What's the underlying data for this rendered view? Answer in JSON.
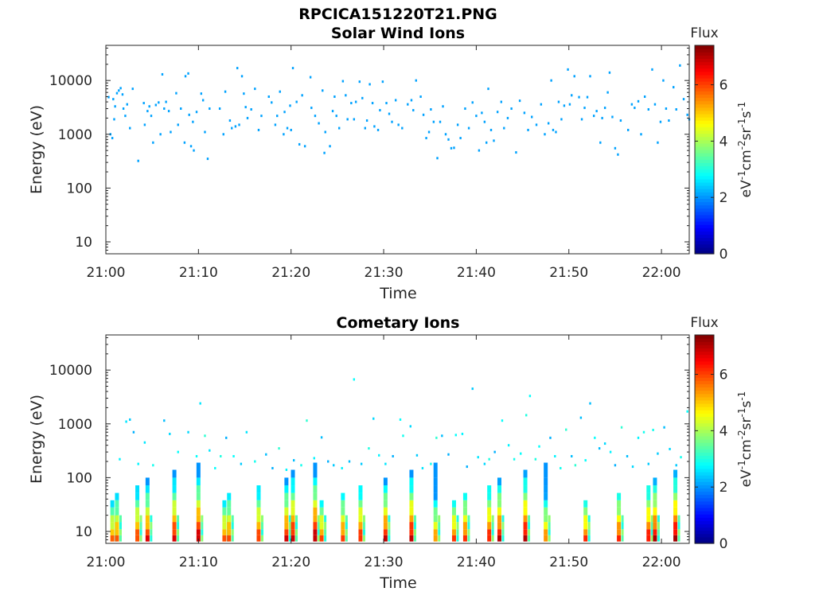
{
  "figure_title": "RPCICA151220T21.PNG",
  "chart_data": [
    {
      "type": "heatmap",
      "title": "Solar Wind Ions",
      "xlabel": "Time",
      "ylabel": "Energy (eV)",
      "yscale": "log",
      "xlim": [
        "21:00",
        "22:03"
      ],
      "ylim": [
        6,
        45000
      ],
      "xticks": [
        "21:00",
        "21:10",
        "21:20",
        "21:30",
        "21:40",
        "21:50",
        "22:00"
      ],
      "yticks": [
        "10",
        "100",
        "1000",
        "10000"
      ],
      "colorbar": {
        "label_top": "Flux",
        "units_label": "eV-1cm-2sr-1s-1",
        "ticks": [
          "0",
          "2",
          "4",
          "6"
        ],
        "range": [
          0,
          7.4
        ]
      },
      "points": [
        [
          0.3,
          4900
        ],
        [
          0.5,
          1000
        ],
        [
          0.7,
          850
        ],
        [
          0.8,
          4500
        ],
        [
          0.9,
          1900
        ],
        [
          1.0,
          3300
        ],
        [
          1.2,
          5800
        ],
        [
          1.4,
          6500
        ],
        [
          1.6,
          7200
        ],
        [
          1.8,
          5500
        ],
        [
          1.9,
          3000
        ],
        [
          2.1,
          2200
        ],
        [
          2.3,
          3600
        ],
        [
          2.6,
          1300
        ],
        [
          2.9,
          7000
        ],
        [
          3.5,
          320
        ],
        [
          4.1,
          3800
        ],
        [
          4.2,
          1500
        ],
        [
          4.5,
          2700
        ],
        [
          4.7,
          3300
        ],
        [
          4.9,
          2200
        ],
        [
          5.1,
          700
        ],
        [
          5.4,
          3500
        ],
        [
          5.7,
          3900
        ],
        [
          5.9,
          1000
        ],
        [
          6.1,
          13000
        ],
        [
          6.3,
          3000
        ],
        [
          6.5,
          4000
        ],
        [
          6.8,
          2700
        ],
        [
          7.0,
          1100
        ],
        [
          7.6,
          5800
        ],
        [
          7.8,
          1500
        ],
        [
          8.1,
          3000
        ],
        [
          8.5,
          700
        ],
        [
          8.6,
          12000
        ],
        [
          8.9,
          13500
        ],
        [
          9.0,
          2300
        ],
        [
          9.2,
          600
        ],
        [
          9.4,
          1700
        ],
        [
          9.5,
          500
        ],
        [
          9.8,
          2600
        ],
        [
          10.3,
          5700
        ],
        [
          10.5,
          4300
        ],
        [
          10.7,
          1100
        ],
        [
          11.0,
          350
        ],
        [
          11.2,
          3000
        ],
        [
          12.3,
          3000
        ],
        [
          12.7,
          1000
        ],
        [
          12.9,
          6200
        ],
        [
          13.4,
          1800
        ],
        [
          13.6,
          1300
        ],
        [
          14.0,
          1400
        ],
        [
          14.2,
          17000
        ],
        [
          14.4,
          1500
        ],
        [
          14.7,
          12000
        ],
        [
          14.9,
          5700
        ],
        [
          15.1,
          3200
        ],
        [
          15.3,
          2000
        ],
        [
          15.7,
          2900
        ],
        [
          16.1,
          7000
        ],
        [
          16.5,
          1200
        ],
        [
          16.8,
          2200
        ],
        [
          17.6,
          5000
        ],
        [
          17.9,
          3900
        ],
        [
          18.3,
          1500
        ],
        [
          18.5,
          2200
        ],
        [
          18.8,
          6200
        ],
        [
          19.2,
          1000
        ],
        [
          19.3,
          2600
        ],
        [
          19.6,
          1300
        ],
        [
          19.9,
          3400
        ],
        [
          20.0,
          1200
        ],
        [
          20.2,
          17000
        ],
        [
          20.6,
          4000
        ],
        [
          20.9,
          650
        ],
        [
          21.2,
          5300
        ],
        [
          21.5,
          600
        ],
        [
          22.1,
          11500
        ],
        [
          22.2,
          3100
        ],
        [
          22.6,
          2200
        ],
        [
          23.0,
          1600
        ],
        [
          23.4,
          6500
        ],
        [
          23.6,
          450
        ],
        [
          23.7,
          1100
        ],
        [
          24.2,
          600
        ],
        [
          24.5,
          2700
        ],
        [
          24.7,
          5000
        ],
        [
          24.9,
          2200
        ],
        [
          25.2,
          1300
        ],
        [
          25.6,
          9700
        ],
        [
          25.9,
          5300
        ],
        [
          26.1,
          1900
        ],
        [
          26.5,
          3800
        ],
        [
          26.8,
          1900
        ],
        [
          27.0,
          4000
        ],
        [
          27.4,
          9500
        ],
        [
          27.7,
          4700
        ],
        [
          28.0,
          1300
        ],
        [
          28.2,
          1800
        ],
        [
          28.5,
          8500
        ],
        [
          28.8,
          3800
        ],
        [
          29.0,
          1400
        ],
        [
          29.4,
          1200
        ],
        [
          29.6,
          2800
        ],
        [
          29.9,
          9500
        ],
        [
          30.3,
          3800
        ],
        [
          30.6,
          2400
        ],
        [
          30.9,
          1700
        ],
        [
          31.3,
          4300
        ],
        [
          31.6,
          1500
        ],
        [
          32.0,
          1300
        ],
        [
          32.6,
          3600
        ],
        [
          33.0,
          4300
        ],
        [
          33.2,
          2800
        ],
        [
          33.5,
          10000
        ],
        [
          34.0,
          5000
        ],
        [
          34.3,
          2300
        ],
        [
          34.6,
          850
        ],
        [
          34.9,
          1100
        ],
        [
          35.1,
          2900
        ],
        [
          35.4,
          1700
        ],
        [
          35.8,
          360
        ],
        [
          36.1,
          1700
        ],
        [
          36.4,
          3300
        ],
        [
          36.7,
          1000
        ],
        [
          37.0,
          800
        ],
        [
          37.3,
          550
        ],
        [
          37.6,
          560
        ],
        [
          38.0,
          1500
        ],
        [
          38.3,
          850
        ],
        [
          38.8,
          3000
        ],
        [
          39.2,
          1300
        ],
        [
          39.6,
          3900
        ],
        [
          40.0,
          2200
        ],
        [
          40.3,
          500
        ],
        [
          40.6,
          2500
        ],
        [
          40.9,
          1700
        ],
        [
          41.1,
          700
        ],
        [
          41.3,
          7000
        ],
        [
          41.6,
          1200
        ],
        [
          41.9,
          760
        ],
        [
          42.3,
          2600
        ],
        [
          42.7,
          4000
        ],
        [
          43.0,
          1300
        ],
        [
          43.4,
          2000
        ],
        [
          43.8,
          3000
        ],
        [
          44.3,
          460
        ],
        [
          44.7,
          4200
        ],
        [
          45.2,
          2500
        ],
        [
          45.6,
          1200
        ],
        [
          46.0,
          2100
        ],
        [
          46.5,
          1500
        ],
        [
          47.0,
          3600
        ],
        [
          47.4,
          1000
        ],
        [
          47.8,
          1600
        ],
        [
          48.1,
          10000
        ],
        [
          48.3,
          1200
        ],
        [
          48.6,
          1100
        ],
        [
          48.9,
          4000
        ],
        [
          49.2,
          1900
        ],
        [
          49.5,
          3400
        ],
        [
          49.9,
          16000
        ],
        [
          50.1,
          3600
        ],
        [
          50.3,
          5300
        ],
        [
          50.6,
          12000
        ],
        [
          51.1,
          4900
        ],
        [
          51.4,
          1900
        ],
        [
          51.7,
          3100
        ],
        [
          52.0,
          4900
        ],
        [
          52.3,
          12000
        ],
        [
          52.7,
          2200
        ],
        [
          53.0,
          2700
        ],
        [
          53.4,
          700
        ],
        [
          53.6,
          2000
        ],
        [
          53.9,
          3100
        ],
        [
          54.2,
          6000
        ],
        [
          54.4,
          14000
        ],
        [
          54.7,
          2100
        ],
        [
          55.0,
          550
        ],
        [
          55.3,
          420
        ],
        [
          55.6,
          1800
        ],
        [
          56.4,
          1200
        ],
        [
          56.8,
          3600
        ],
        [
          57.1,
          3100
        ],
        [
          57.5,
          4100
        ],
        [
          57.8,
          1000
        ],
        [
          58.2,
          5000
        ],
        [
          58.6,
          2900
        ],
        [
          59.0,
          16000
        ],
        [
          59.3,
          3600
        ],
        [
          59.6,
          700
        ],
        [
          59.9,
          1700
        ],
        [
          60.2,
          10000
        ],
        [
          60.5,
          3000
        ],
        [
          60.8,
          1800
        ],
        [
          61.3,
          7500
        ],
        [
          61.6,
          2900
        ],
        [
          62.0,
          19000
        ],
        [
          62.4,
          4500
        ],
        [
          62.8,
          2300
        ],
        [
          63.0,
          1900
        ]
      ]
    },
    {
      "type": "heatmap",
      "title": "Cometary Ions",
      "xlabel": "Time",
      "ylabel": "Energy (eV)",
      "yscale": "log",
      "xlim": [
        "21:00",
        "22:03"
      ],
      "ylim": [
        6,
        45000
      ],
      "xticks": [
        "21:00",
        "21:10",
        "21:20",
        "21:30",
        "21:40",
        "21:50",
        "22:00"
      ],
      "yticks": [
        "10",
        "100",
        "1000",
        "10000"
      ],
      "colorbar": {
        "label_top": "Flux",
        "units_label": "eV-1cm-2sr-1s-1",
        "ticks": [
          "0",
          "2",
          "4",
          "6"
        ],
        "range": [
          0,
          7.4
        ]
      },
      "column_peaks": [
        0.7,
        1.2,
        3.4,
        4.5,
        7.4,
        10.0,
        12.8,
        13.3,
        16.5,
        19.5,
        20.2,
        22.6,
        23.3,
        25.6,
        27.5,
        30.2,
        33.0,
        35.6,
        37.6,
        38.8,
        41.4,
        42.5,
        45.3,
        47.5,
        51.8,
        55.4,
        58.6,
        59.3,
        61.5
      ],
      "scatter_points": [
        [
          1.5,
          220
        ],
        [
          2.2,
          1100
        ],
        [
          2.6,
          1200
        ],
        [
          3.0,
          700
        ],
        [
          3.5,
          180
        ],
        [
          4.2,
          450
        ],
        [
          5.1,
          170
        ],
        [
          6.3,
          1150
        ],
        [
          6.9,
          650
        ],
        [
          7.8,
          300
        ],
        [
          8.9,
          700
        ],
        [
          9.8,
          250
        ],
        [
          10.2,
          2400
        ],
        [
          10.7,
          600
        ],
        [
          11.2,
          320
        ],
        [
          11.8,
          150
        ],
        [
          12.4,
          250
        ],
        [
          13.0,
          550
        ],
        [
          13.8,
          250
        ],
        [
          14.6,
          180
        ],
        [
          15.2,
          700
        ],
        [
          16.1,
          200
        ],
        [
          17.3,
          270
        ],
        [
          18.0,
          150
        ],
        [
          18.7,
          350
        ],
        [
          19.5,
          140
        ],
        [
          20.3,
          210
        ],
        [
          21.1,
          170
        ],
        [
          21.7,
          1150
        ],
        [
          22.5,
          230
        ],
        [
          23.3,
          560
        ],
        [
          24.0,
          200
        ],
        [
          24.6,
          170
        ],
        [
          25.5,
          150
        ],
        [
          26.3,
          200
        ],
        [
          26.8,
          6700
        ],
        [
          27.6,
          180
        ],
        [
          28.4,
          350
        ],
        [
          28.9,
          1250
        ],
        [
          29.5,
          260
        ],
        [
          30.2,
          180
        ],
        [
          31.0,
          250
        ],
        [
          31.8,
          1200
        ],
        [
          32.1,
          600
        ],
        [
          32.9,
          900
        ],
        [
          33.6,
          260
        ],
        [
          34.2,
          150
        ],
        [
          35.1,
          180
        ],
        [
          35.7,
          550
        ],
        [
          36.3,
          600
        ],
        [
          37.0,
          270
        ],
        [
          37.8,
          620
        ],
        [
          38.5,
          650
        ],
        [
          39.0,
          160
        ],
        [
          39.6,
          4500
        ],
        [
          40.2,
          240
        ],
        [
          40.9,
          180
        ],
        [
          41.4,
          220
        ],
        [
          42.0,
          300
        ],
        [
          42.8,
          1150
        ],
        [
          43.5,
          400
        ],
        [
          44.1,
          220
        ],
        [
          44.8,
          280
        ],
        [
          45.4,
          1450
        ],
        [
          45.8,
          3300
        ],
        [
          46.4,
          220
        ],
        [
          46.8,
          380
        ],
        [
          47.5,
          130
        ],
        [
          48.0,
          550
        ],
        [
          48.5,
          250
        ],
        [
          49.1,
          150
        ],
        [
          49.7,
          780
        ],
        [
          50.3,
          250
        ],
        [
          50.7,
          170
        ],
        [
          51.3,
          1300
        ],
        [
          51.8,
          210
        ],
        [
          52.3,
          2400
        ],
        [
          52.8,
          550
        ],
        [
          53.3,
          350
        ],
        [
          53.9,
          430
        ],
        [
          54.5,
          300
        ],
        [
          55.0,
          170
        ],
        [
          55.7,
          860
        ],
        [
          56.3,
          250
        ],
        [
          56.9,
          160
        ],
        [
          57.5,
          550
        ],
        [
          58.1,
          700
        ],
        [
          58.6,
          180
        ],
        [
          59.1,
          770
        ],
        [
          59.6,
          280
        ],
        [
          60.3,
          860
        ],
        [
          60.9,
          340
        ],
        [
          61.6,
          170
        ],
        [
          62.1,
          240
        ],
        [
          62.8,
          1700
        ]
      ]
    }
  ]
}
